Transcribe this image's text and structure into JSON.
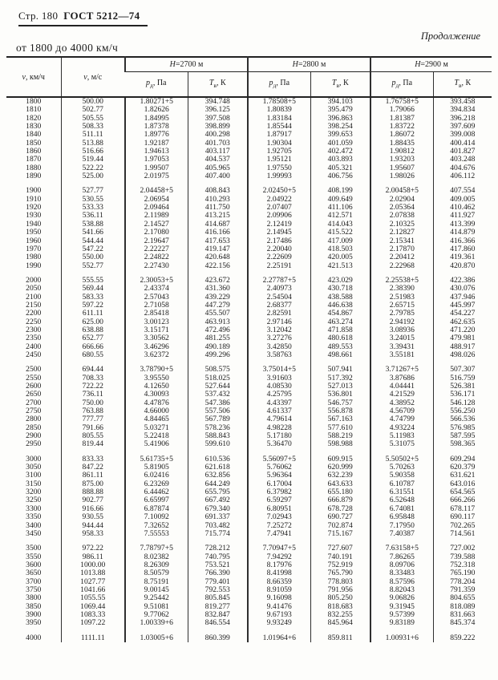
{
  "page": {
    "page_label": "Стр. 180",
    "doc_label": "ГОСТ 5212—74",
    "continuation": "Продолжение",
    "range_title": "от 1800 до 4000 км/ч"
  },
  "table": {
    "columns": {
      "v_kmh": {
        "sym": "v",
        "rest": ", км/ч"
      },
      "v_ms": {
        "sym": "v",
        "rest": ", м/с"
      },
      "p": {
        "sym": "р",
        "sub": "д",
        "rest": ", Па"
      },
      "t": {
        "sym": "Т",
        "sub": "в",
        "rest": ", К"
      }
    },
    "altitude_groups": [
      {
        "sym": "Н",
        "rest": "=2700 м"
      },
      {
        "sym": "Н",
        "rest": "=2800 м"
      },
      {
        "sym": "Н",
        "rest": "=2900 м"
      }
    ],
    "row_groups": [
      [
        [
          "1800",
          "500.00",
          "1.80271+5",
          "394.748",
          "1.78508+5",
          "394.103",
          "1.76758+5",
          "393.458"
        ],
        [
          "1810",
          "502.77",
          "1.82626",
          "396.125",
          "1.80839",
          "395.479",
          "1.79066",
          "394.834"
        ],
        [
          "1820",
          "505.55",
          "1.84995",
          "397.508",
          "1.83184",
          "396.863",
          "1.81387",
          "396.218"
        ],
        [
          "1830",
          "508.33",
          "1.87378",
          "398.899",
          "1.85544",
          "398.254",
          "1.83722",
          "397.609"
        ],
        [
          "1840",
          "511.11",
          "1.89776",
          "400.298",
          "1.87917",
          "399.653",
          "1.86072",
          "399.008"
        ],
        [
          "1850",
          "513.88",
          "1.92187",
          "401.703",
          "1.90304",
          "401.059",
          "1.88435",
          "400.414"
        ],
        [
          "1860",
          "516.66",
          "1.94613",
          "403.117",
          "1.92705",
          "402.472",
          "1.90812",
          "401.827"
        ],
        [
          "1870",
          "519.44",
          "1.97053",
          "404.537",
          "1.95121",
          "403.893",
          "1.93203",
          "403.248"
        ],
        [
          "1880",
          "522.22",
          "1.99507",
          "405.965",
          "1.97550",
          "405.321",
          "1.95607",
          "404.676"
        ],
        [
          "1890",
          "525.00",
          "2.01975",
          "407.400",
          "1.99993",
          "406.756",
          "1.98026",
          "406.112"
        ]
      ],
      [
        [
          "1900",
          "527.77",
          "2.04458+5",
          "408.843",
          "2.02450+5",
          "408.199",
          "2.00458+5",
          "407.554"
        ],
        [
          "1910",
          "530.55",
          "2.06954",
          "410.293",
          "2.04922",
          "409.649",
          "2.02904",
          "409.005"
        ],
        [
          "1920",
          "533.33",
          "2.09464",
          "411.750",
          "2.07407",
          "411.106",
          "2.05364",
          "410.462"
        ],
        [
          "1930",
          "536.11",
          "2.11989",
          "413.215",
          "2.09906",
          "412.571",
          "2.07838",
          "411.927"
        ],
        [
          "1940",
          "538.88",
          "2.14527",
          "414.687",
          "2.12419",
          "414.043",
          "2.10325",
          "413.399"
        ],
        [
          "1950",
          "541.66",
          "2.17080",
          "416.166",
          "2.14945",
          "415.522",
          "2.12827",
          "414.879"
        ],
        [
          "1960",
          "544.44",
          "2.19647",
          "417.653",
          "2.17486",
          "417.009",
          "2.15341",
          "416.366"
        ],
        [
          "1970",
          "547.22",
          "2.22227",
          "419.147",
          "2.20040",
          "418.503",
          "2.17870",
          "417.860"
        ],
        [
          "1980",
          "550.00",
          "2.24822",
          "420.648",
          "2.22609",
          "420.005",
          "2.20412",
          "419.361"
        ],
        [
          "1990",
          "552.77",
          "2.27430",
          "422.156",
          "2.25191",
          "421.513",
          "2.22968",
          "420.870"
        ]
      ],
      [
        [
          "2000",
          "555.55",
          "2.30053+5",
          "423.672",
          "2.27787+5",
          "423.029",
          "2.25538+5",
          "422.386"
        ],
        [
          "2050",
          "569.44",
          "2.43374",
          "431.360",
          "2.40973",
          "430.718",
          "2.38390",
          "430.076"
        ],
        [
          "2100",
          "583.33",
          "2.57043",
          "439.229",
          "2.54504",
          "438.588",
          "2.51983",
          "437.946"
        ],
        [
          "2150",
          "597.22",
          "2.71058",
          "447.279",
          "2.68377",
          "446.638",
          "2.65715",
          "445.997"
        ],
        [
          "2200",
          "611.11",
          "2.85418",
          "455.507",
          "2.82591",
          "454.867",
          "2.79785",
          "454.227"
        ],
        [
          "2250",
          "625.00",
          "3.00123",
          "463.913",
          "2.97146",
          "463.274",
          "2.94192",
          "462.635"
        ],
        [
          "2300",
          "638.88",
          "3.15171",
          "472.496",
          "3.12042",
          "471.858",
          "3.08936",
          "471.220"
        ],
        [
          "2350",
          "652.77",
          "3.30562",
          "481.255",
          "3.27276",
          "480.618",
          "3.24015",
          "479.981"
        ],
        [
          "2400",
          "666.66",
          "3.46296",
          "490.189",
          "3.42850",
          "489.553",
          "3.39431",
          "488.917"
        ],
        [
          "2450",
          "680.55",
          "3.62372",
          "499.296",
          "3.58763",
          "498.661",
          "3.55181",
          "498.026"
        ]
      ],
      [
        [
          "2500",
          "694.44",
          "3.78790+5",
          "508.575",
          "3.75014+5",
          "507.941",
          "3.71267+5",
          "507.307"
        ],
        [
          "2550",
          "708.33",
          "3.95550",
          "518.025",
          "3.91603",
          "517.392",
          "3.87686",
          "516.759"
        ],
        [
          "2600",
          "722.22",
          "4.12650",
          "527.644",
          "4.08530",
          "527.013",
          "4.04441",
          "526.381"
        ],
        [
          "2650",
          "736.11",
          "4.30093",
          "537.432",
          "4.25795",
          "536.801",
          "4.21529",
          "536.171"
        ],
        [
          "2700",
          "750.00",
          "4.47876",
          "547.386",
          "4.43397",
          "546.757",
          "4.38952",
          "546.128"
        ],
        [
          "2750",
          "763.88",
          "4.66000",
          "557.506",
          "4.61337",
          "556.878",
          "4.56709",
          "556.250"
        ],
        [
          "2800",
          "777.77",
          "4.84465",
          "567.789",
          "4.79614",
          "567.163",
          "4.74799",
          "566.536"
        ],
        [
          "2850",
          "791.66",
          "5.03271",
          "578.236",
          "4.98228",
          "577.610",
          "4.93224",
          "576.985"
        ],
        [
          "2900",
          "805.55",
          "5.22418",
          "588.843",
          "5.17180",
          "588.219",
          "5.11983",
          "587.595"
        ],
        [
          "2950",
          "819.44",
          "5.41906",
          "599.610",
          "5.36470",
          "598.988",
          "5.31075",
          "598.365"
        ]
      ],
      [
        [
          "3000",
          "833.33",
          "5.61735+5",
          "610.536",
          "5.56097+5",
          "609.915",
          "5.50502+5",
          "609.294"
        ],
        [
          "3050",
          "847.22",
          "5.81905",
          "621.618",
          "5.76062",
          "620.999",
          "5.70263",
          "620.379"
        ],
        [
          "3100",
          "861.11",
          "6.02416",
          "632.856",
          "5.96364",
          "632.239",
          "5.90358",
          "631.621"
        ],
        [
          "3150",
          "875.00",
          "6.23269",
          "644.249",
          "6.17004",
          "643.633",
          "6.10787",
          "643.016"
        ],
        [
          "3200",
          "888.88",
          "6.44462",
          "655.795",
          "6.37982",
          "655.180",
          "6.31551",
          "654.565"
        ],
        [
          "3250",
          "902.77",
          "6.65997",
          "667.492",
          "6.59297",
          "666.879",
          "6.52648",
          "666.266"
        ],
        [
          "3300",
          "916.66",
          "6.87874",
          "679.340",
          "6.80951",
          "678.728",
          "6.74081",
          "678.117"
        ],
        [
          "3350",
          "930.55",
          "7.10092",
          "691.337",
          "7.02943",
          "690.727",
          "6.95848",
          "690.117"
        ],
        [
          "3400",
          "944.44",
          "7.32652",
          "703.482",
          "7.25272",
          "702.874",
          "7.17950",
          "702.265"
        ],
        [
          "3450",
          "958.33",
          "7.55553",
          "715.774",
          "7.47941",
          "715.167",
          "7.40387",
          "714.561"
        ]
      ],
      [
        [
          "3500",
          "972.22",
          "7.78797+5",
          "728.212",
          "7.70947+5",
          "727.607",
          "7.63158+5",
          "727.002"
        ],
        [
          "3550",
          "986.11",
          "8.02382",
          "740.795",
          "7.94292",
          "740.191",
          "7.86265",
          "739.588"
        ],
        [
          "3600",
          "1000.00",
          "8.26309",
          "753.521",
          "8.17976",
          "752.919",
          "8.09706",
          "752.318"
        ],
        [
          "3650",
          "1013.88",
          "8.50579",
          "766.390",
          "8.41998",
          "765.790",
          "8.33483",
          "765.190"
        ],
        [
          "3700",
          "1027.77",
          "8.75191",
          "779.401",
          "8.66359",
          "778.803",
          "8.57596",
          "778.204"
        ],
        [
          "3750",
          "1041.66",
          "9.00145",
          "792.553",
          "8.91059",
          "791.956",
          "8.82043",
          "791.359"
        ],
        [
          "3800",
          "1055.55",
          "9.25442",
          "805.845",
          "9.16098",
          "805.250",
          "9.06826",
          "804.655"
        ],
        [
          "3850",
          "1069.44",
          "9.51081",
          "819.277",
          "9.41476",
          "818.683",
          "9.31945",
          "818.089"
        ],
        [
          "3900",
          "1083.33",
          "9.77062",
          "832.847",
          "9.67193",
          "832.255",
          "9.57399",
          "831.663"
        ],
        [
          "3950",
          "1097.22",
          "1.00339+6",
          "846.554",
          "9.93249",
          "845.964",
          "9.83189",
          "845.374"
        ]
      ],
      [
        [
          "4000",
          "1111.11",
          "1.03005+6",
          "860.399",
          "1.01964+6",
          "859.811",
          "1.00931+6",
          "859.222"
        ]
      ]
    ]
  }
}
